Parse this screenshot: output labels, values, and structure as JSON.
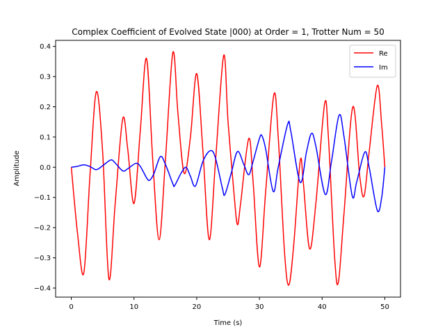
{
  "chart_data": {
    "type": "line",
    "title": "Complex Coefficient of Evolved State |000⟩ at Order = 1, Trotter Num = 50",
    "xlabel": "Time (s)",
    "ylabel": "Amplitude",
    "xlim": [
      -2.5,
      52.5
    ],
    "ylim": [
      -0.43,
      0.42
    ],
    "xticks": [
      0,
      10,
      20,
      30,
      40,
      50
    ],
    "xtick_labels": [
      "0",
      "10",
      "20",
      "30",
      "40",
      "50"
    ],
    "yticks": [
      -0.4,
      -0.3,
      -0.2,
      -0.1,
      0.0,
      0.1,
      0.2,
      0.3,
      0.4
    ],
    "ytick_labels": [
      "−0.4",
      "−0.3",
      "−0.2",
      "−0.1",
      "0.0",
      "0.1",
      "0.2",
      "0.3",
      "0.4"
    ],
    "grid": false,
    "legend_position": "top-right",
    "series": [
      {
        "name": "Re",
        "color": "#ff0000",
        "points": [
          [
            0,
            0.0
          ],
          [
            1.0,
            -0.22
          ],
          [
            2.0,
            -0.35
          ],
          [
            3.0,
            -0.02
          ],
          [
            4.0,
            0.25
          ],
          [
            5.0,
            0.05
          ],
          [
            6.0,
            -0.37
          ],
          [
            7.0,
            -0.12
          ],
          [
            8.2,
            0.16
          ],
          [
            9.0,
            0.06
          ],
          [
            10.0,
            -0.12
          ],
          [
            11.0,
            0.12
          ],
          [
            12.0,
            0.36
          ],
          [
            13.0,
            0.02
          ],
          [
            14.0,
            -0.24
          ],
          [
            15.0,
            0.02
          ],
          [
            16.2,
            0.38
          ],
          [
            17.0,
            0.18
          ],
          [
            18.0,
            -0.02
          ],
          [
            19.0,
            0.1
          ],
          [
            20.0,
            0.31
          ],
          [
            21.0,
            0.05
          ],
          [
            22.0,
            -0.24
          ],
          [
            23.0,
            0.02
          ],
          [
            24.3,
            0.37
          ],
          [
            25.0,
            0.15
          ],
          [
            26.0,
            -0.1
          ],
          [
            26.5,
            -0.19
          ],
          [
            27.0,
            -0.12
          ],
          [
            28.3,
            0.095
          ],
          [
            29.0,
            -0.05
          ],
          [
            30.0,
            -0.33
          ],
          [
            31.0,
            -0.08
          ],
          [
            32.3,
            0.24
          ],
          [
            33.0,
            0.1
          ],
          [
            34.0,
            -0.28
          ],
          [
            34.7,
            -0.39
          ],
          [
            35.5,
            -0.25
          ],
          [
            36.5,
            0.02
          ],
          [
            37.0,
            -0.05
          ],
          [
            38.0,
            -0.27
          ],
          [
            39.0,
            -0.12
          ],
          [
            40.4,
            0.21
          ],
          [
            41.0,
            0.1
          ],
          [
            42.0,
            -0.3
          ],
          [
            42.6,
            -0.38
          ],
          [
            43.5,
            -0.15
          ],
          [
            44.9,
            0.2
          ],
          [
            46.0,
            -0.03
          ],
          [
            46.7,
            -0.095
          ],
          [
            47.5,
            0.05
          ],
          [
            48.8,
            0.27
          ],
          [
            49.5,
            0.14
          ],
          [
            50.0,
            0.0
          ]
        ]
      },
      {
        "name": "Im",
        "color": "#0000ff",
        "points": [
          [
            0,
            0.0
          ],
          [
            1.0,
            0.003
          ],
          [
            2.0,
            0.008
          ],
          [
            3.0,
            0.002
          ],
          [
            4.0,
            -0.008
          ],
          [
            5.0,
            0.005
          ],
          [
            6.3,
            0.024
          ],
          [
            7.0,
            0.014
          ],
          [
            8.2,
            -0.012
          ],
          [
            9.0,
            -0.005
          ],
          [
            10.3,
            0.013
          ],
          [
            11.0,
            0.003
          ],
          [
            12.0,
            -0.035
          ],
          [
            12.5,
            -0.043
          ],
          [
            13.2,
            -0.02
          ],
          [
            14.2,
            0.035
          ],
          [
            15.0,
            0.01
          ],
          [
            16.2,
            -0.055
          ],
          [
            16.5,
            -0.06
          ],
          [
            17.5,
            -0.02
          ],
          [
            18.3,
            0.0
          ],
          [
            19.0,
            -0.03
          ],
          [
            19.8,
            -0.062
          ],
          [
            21.0,
            0.02
          ],
          [
            22.2,
            0.055
          ],
          [
            23.0,
            0.03
          ],
          [
            24.1,
            -0.07
          ],
          [
            24.5,
            -0.09
          ],
          [
            25.5,
            -0.02
          ],
          [
            26.5,
            0.052
          ],
          [
            27.5,
            0.01
          ],
          [
            28.3,
            -0.025
          ],
          [
            29.0,
            0.02
          ],
          [
            30.0,
            0.095
          ],
          [
            30.4,
            0.104
          ],
          [
            31.0,
            0.06
          ],
          [
            32.2,
            -0.08
          ],
          [
            33.0,
            0.0
          ],
          [
            34.5,
            0.142
          ],
          [
            35.0,
            0.12
          ],
          [
            36.5,
            -0.05
          ],
          [
            37.5,
            0.05
          ],
          [
            38.3,
            0.112
          ],
          [
            39.0,
            0.07
          ],
          [
            40.5,
            -0.09
          ],
          [
            41.5,
            0.02
          ],
          [
            42.7,
            0.172
          ],
          [
            43.5,
            0.1
          ],
          [
            44.8,
            -0.095
          ],
          [
            45.5,
            -0.05
          ],
          [
            46.8,
            0.05
          ],
          [
            47.5,
            0.0
          ],
          [
            48.8,
            -0.143
          ],
          [
            49.5,
            -0.1
          ],
          [
            50.0,
            0.0
          ]
        ]
      }
    ]
  }
}
